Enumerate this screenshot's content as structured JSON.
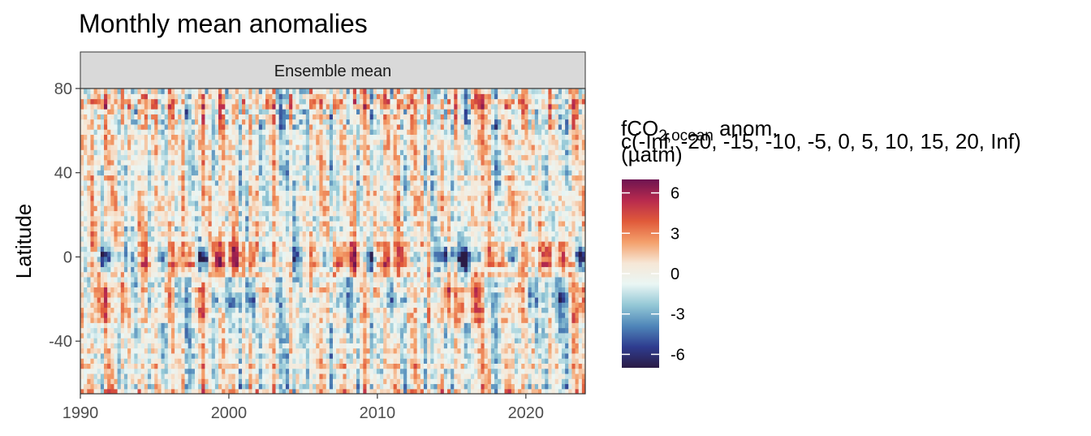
{
  "chart_data": {
    "type": "heatmap",
    "title": "Monthly mean anomalies",
    "facet_label": "Ensemble mean",
    "xlabel": "",
    "ylabel": "Latitude",
    "xlim": [
      1990,
      2024
    ],
    "ylim": [
      -65,
      80
    ],
    "x_ticks": [
      1990,
      2000,
      2010,
      2020
    ],
    "y_ticks": [
      80,
      40,
      0,
      -40
    ],
    "legend": {
      "title_line1": "fCO",
      "title_sub": "2,ocean",
      "title_suffix": " anom.",
      "title_overlay": "c(-Inf, -20, -15, -10, -5, 0, 5, 10, 15, 20, Inf)",
      "title_line3": "(µatm)",
      "ticks": [
        6,
        3,
        0,
        -3,
        -6
      ],
      "range": [
        -7,
        7
      ],
      "colors": [
        "#2b1b45",
        "#2e3c8f",
        "#4f86b9",
        "#94c8d6",
        "#eaf6f4",
        "#f6e7d6",
        "#f4a06b",
        "#e05a3a",
        "#b82a4e",
        "#6e1450"
      ],
      "placement": "right"
    },
    "equatorial_signal": [
      {
        "year": 1991.6,
        "value": -5.5
      },
      {
        "year": 1992.9,
        "value": -3.0
      },
      {
        "year": 1994.6,
        "value": 3.0
      },
      {
        "year": 1995.7,
        "value": -3.5
      },
      {
        "year": 1996.5,
        "value": 4.0
      },
      {
        "year": 1997.4,
        "value": 3.5
      },
      {
        "year": 1998.2,
        "value": -6.5
      },
      {
        "year": 1999.3,
        "value": 5.5
      },
      {
        "year": 2000.4,
        "value": 6.0
      },
      {
        "year": 2001.5,
        "value": 5.0
      },
      {
        "year": 2002.3,
        "value": -3.5
      },
      {
        "year": 2003.0,
        "value": 2.5
      },
      {
        "year": 2004.6,
        "value": -2.5
      },
      {
        "year": 2005.8,
        "value": 3.0
      },
      {
        "year": 2006.5,
        "value": -3.5
      },
      {
        "year": 2007.4,
        "value": 4.0
      },
      {
        "year": 2008.3,
        "value": 5.0
      },
      {
        "year": 2009.6,
        "value": -3.0
      },
      {
        "year": 2010.7,
        "value": 5.5
      },
      {
        "year": 2011.8,
        "value": 4.0
      },
      {
        "year": 2012.5,
        "value": -2.0
      },
      {
        "year": 2014.6,
        "value": -5.5
      },
      {
        "year": 2015.8,
        "value": -6.5
      },
      {
        "year": 2016.7,
        "value": -4.0
      },
      {
        "year": 2017.6,
        "value": 3.0
      },
      {
        "year": 2018.4,
        "value": 2.5
      },
      {
        "year": 2019.2,
        "value": -4.0
      },
      {
        "year": 2020.2,
        "value": 3.5
      },
      {
        "year": 2021.4,
        "value": 4.5
      },
      {
        "year": 2022.4,
        "value": 5.0
      },
      {
        "year": 2023.8,
        "value": -6.0
      }
    ]
  }
}
